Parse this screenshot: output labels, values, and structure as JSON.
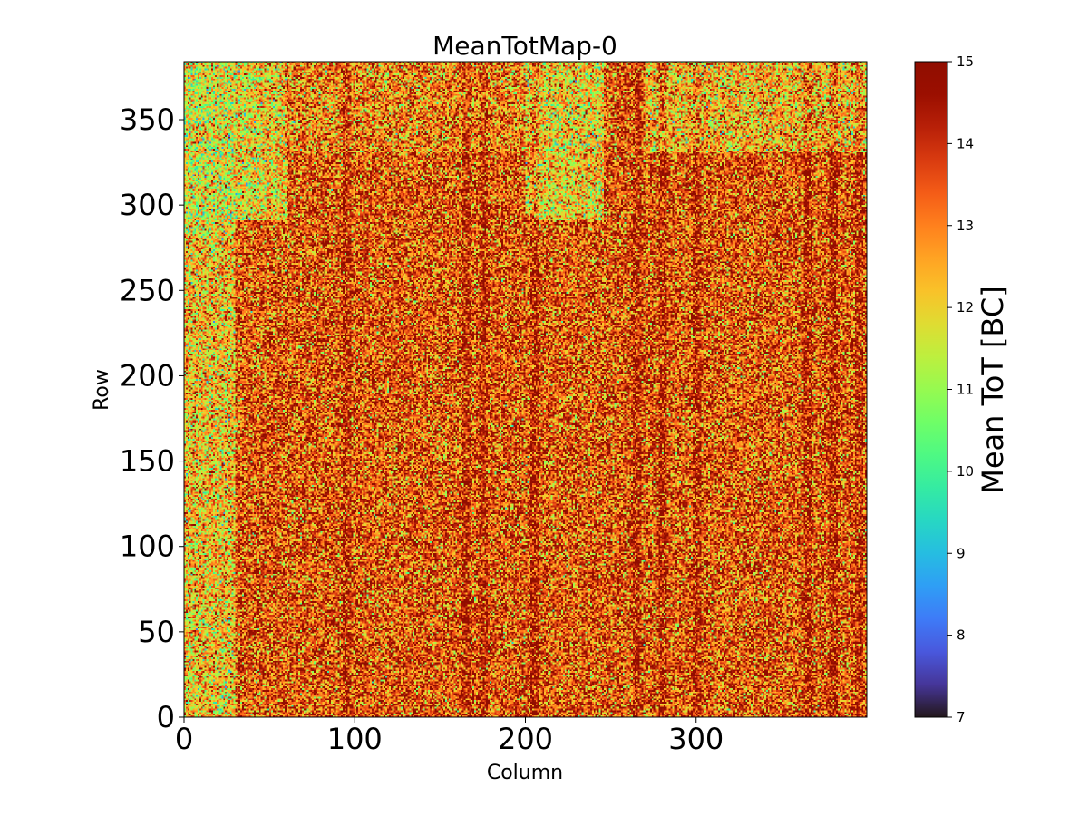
{
  "chart_data": {
    "type": "heatmap",
    "title": "MeanTotMap-0",
    "xlabel": "Column",
    "ylabel": "Row",
    "xlim": [
      0,
      400
    ],
    "ylim": [
      0,
      384
    ],
    "x_ticks": [
      0,
      100,
      200,
      300
    ],
    "y_ticks": [
      0,
      50,
      100,
      150,
      200,
      250,
      300,
      350
    ],
    "grid": false,
    "colormap": "turbo",
    "colorbar": {
      "label": "Mean ToT [BC]",
      "range": [
        7,
        15
      ],
      "ticks": [
        7,
        8,
        9,
        10,
        11,
        12,
        13,
        14,
        15
      ]
    },
    "value_distribution": {
      "typical_value": 13.5,
      "description_regions": [
        {
          "region": "columns 0-30, rows 0-384",
          "approx_mean": 12.2
        },
        {
          "region": "columns 0-60, rows 300-384",
          "approx_mean": 11.5
        },
        {
          "region": "columns 200-240, rows 300-384",
          "approx_mean": 12.0
        },
        {
          "region": "columns 270-400, rows 330-384",
          "approx_mean": 12.3
        },
        {
          "region": "columns 60-400, rows 0-300",
          "approx_mean": 13.7
        }
      ],
      "darker_column_bands": [
        95,
        165,
        175,
        205,
        265,
        280,
        300,
        365,
        380,
        395
      ]
    }
  }
}
